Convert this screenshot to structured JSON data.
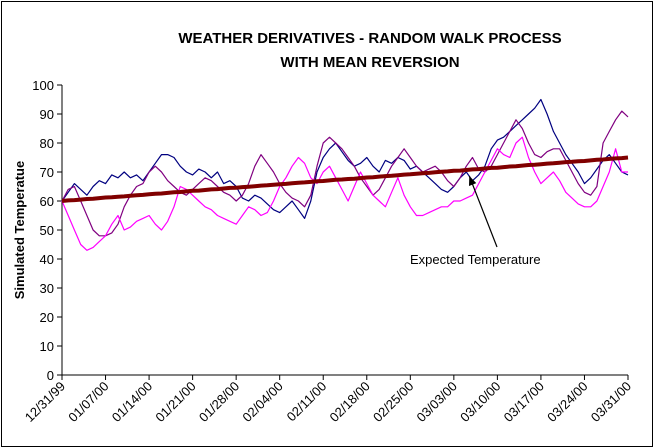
{
  "chart_data": {
    "type": "line",
    "title": [
      "WEATHER DERIVATIVES - RANDOM WALK PROCESS",
      "WITH MEAN REVERSION"
    ],
    "y_label": "Simulated Temperatue",
    "annotation": "Expected Temperature",
    "categories": [
      "12/31/99",
      null,
      null,
      null,
      null,
      null,
      null,
      "01/07/00",
      null,
      null,
      null,
      null,
      null,
      null,
      "01/14/00",
      null,
      null,
      null,
      null,
      null,
      null,
      "01/21/00",
      null,
      null,
      null,
      null,
      null,
      null,
      "01/28/00",
      null,
      null,
      null,
      null,
      null,
      null,
      "02/04/00",
      null,
      null,
      null,
      null,
      null,
      null,
      "02/11/00",
      null,
      null,
      null,
      null,
      null,
      null,
      "02/18/00",
      null,
      null,
      null,
      null,
      null,
      null,
      "02/25/00",
      null,
      null,
      null,
      null,
      null,
      null,
      "03/03/00",
      null,
      null,
      null,
      null,
      null,
      null,
      "03/10/00",
      null,
      null,
      null,
      null,
      null,
      null,
      "03/17/00",
      null,
      null,
      null,
      null,
      null,
      null,
      "03/24/00",
      null,
      null,
      null,
      null,
      null,
      null,
      "03/31/00"
    ],
    "series": [
      {
        "color": "#000080",
        "width": 1.2,
        "values": [
          60,
          63,
          66,
          64,
          62,
          65,
          67,
          66,
          69,
          68,
          70,
          68,
          69,
          67,
          70,
          73,
          76,
          76,
          75,
          72,
          70,
          69,
          71,
          70,
          68,
          70,
          66,
          67,
          65,
          61,
          60,
          62,
          61,
          59,
          57,
          56,
          58,
          60,
          57,
          54,
          60,
          70,
          75,
          78,
          80,
          77,
          74,
          72,
          73,
          75,
          72,
          70,
          74,
          73,
          75,
          74,
          71,
          72,
          70,
          68,
          66,
          64,
          63,
          65,
          68,
          70,
          67,
          69,
          72,
          78,
          81,
          82,
          84,
          86,
          88,
          90,
          92,
          95,
          90,
          84,
          80,
          76,
          73,
          70,
          66,
          68,
          71,
          74,
          76,
          73,
          70,
          69
        ]
      },
      {
        "color": "#800080",
        "width": 1.2,
        "values": [
          60,
          64,
          65,
          60,
          55,
          50,
          48,
          48,
          49,
          52,
          58,
          62,
          65,
          66,
          70,
          72,
          70,
          67,
          65,
          63,
          62,
          64,
          66,
          68,
          67,
          65,
          63,
          62,
          60,
          62,
          66,
          72,
          76,
          73,
          70,
          66,
          63,
          61,
          60,
          58,
          62,
          72,
          80,
          82,
          80,
          78,
          75,
          72,
          68,
          65,
          62,
          64,
          68,
          72,
          75,
          78,
          75,
          72,
          70,
          71,
          72,
          70,
          67,
          65,
          68,
          72,
          75,
          71,
          70,
          72,
          76,
          80,
          84,
          88,
          85,
          80,
          76,
          75,
          77,
          78,
          78,
          74,
          70,
          66,
          63,
          62,
          65,
          80,
          84,
          88,
          91,
          89
        ]
      },
      {
        "color": "#ff00ff",
        "width": 1.2,
        "values": [
          60,
          55,
          50,
          45,
          43,
          44,
          46,
          48,
          52,
          55,
          50,
          51,
          53,
          54,
          55,
          52,
          50,
          53,
          58,
          65,
          64,
          62,
          60,
          58,
          57,
          55,
          54,
          53,
          52,
          55,
          58,
          57,
          55,
          56,
          60,
          65,
          68,
          72,
          75,
          73,
          68,
          66,
          70,
          72,
          68,
          64,
          60,
          65,
          70,
          66,
          62,
          60,
          58,
          63,
          68,
          62,
          58,
          55,
          55,
          56,
          57,
          58,
          58,
          60,
          60,
          61,
          62,
          66,
          70,
          74,
          78,
          76,
          75,
          80,
          82,
          75,
          70,
          66,
          68,
          70,
          67,
          63,
          61,
          59,
          58,
          58,
          60,
          65,
          70,
          78,
          70,
          70
        ]
      },
      {
        "color": "#800000",
        "width": 4,
        "values": [
          60,
          60.2,
          60.3,
          60.5,
          60.7,
          60.8,
          61.0,
          61.2,
          61.3,
          61.5,
          61.6,
          61.8,
          62.0,
          62.1,
          62.3,
          62.5,
          62.6,
          62.8,
          63.0,
          63.1,
          63.3,
          63.5,
          63.6,
          63.8,
          64.0,
          64.1,
          64.3,
          64.5,
          64.6,
          64.8,
          64.9,
          65.1,
          65.3,
          65.4,
          65.6,
          65.8,
          65.9,
          66.1,
          66.3,
          66.4,
          66.6,
          66.8,
          66.9,
          67.1,
          67.3,
          67.4,
          67.6,
          67.7,
          67.9,
          68.1,
          68.2,
          68.4,
          68.6,
          68.7,
          68.9,
          69.1,
          69.2,
          69.4,
          69.6,
          69.7,
          69.9,
          70.1,
          70.2,
          70.4,
          70.5,
          70.7,
          70.9,
          71.0,
          71.2,
          71.4,
          71.5,
          71.7,
          71.9,
          72.0,
          72.2,
          72.4,
          72.5,
          72.7,
          72.9,
          73.0,
          73.2,
          73.4,
          73.5,
          73.7,
          73.8,
          74.0,
          74.2,
          74.3,
          74.5,
          74.7,
          74.8,
          75.0
        ]
      }
    ],
    "ylim": [
      0,
      100
    ],
    "yticks": [
      0,
      10,
      20,
      30,
      40,
      50,
      60,
      70,
      80,
      90,
      100
    ],
    "grid": false
  }
}
